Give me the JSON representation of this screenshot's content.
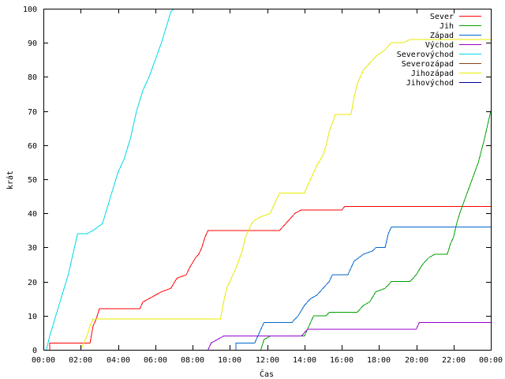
{
  "chart_data": {
    "type": "line",
    "title": "",
    "xlabel": "Čas",
    "ylabel": "krát",
    "xlim": [
      "00:00",
      "24:00"
    ],
    "ylim": [
      0,
      100
    ],
    "grid": false,
    "legend_position": "top-right",
    "x_tick_labels": [
      "00:00",
      "02:00",
      "04:00",
      "06:00",
      "08:00",
      "10:00",
      "12:00",
      "14:00",
      "16:00",
      "18:00",
      "20:00",
      "22:00",
      "00:00"
    ],
    "y_tick_labels": [
      "0",
      "10",
      "20",
      "30",
      "40",
      "50",
      "60",
      "70",
      "80",
      "90",
      "100"
    ],
    "series": [
      {
        "name": "Sever",
        "color": "#ff0000",
        "points": [
          [
            "00:20",
            0
          ],
          [
            "00:20",
            2
          ],
          [
            "02:30",
            2
          ],
          [
            "02:40",
            7
          ],
          [
            "02:50",
            9
          ],
          [
            "03:00",
            12
          ],
          [
            "05:10",
            12
          ],
          [
            "05:20",
            14
          ],
          [
            "05:40",
            15
          ],
          [
            "06:00",
            16
          ],
          [
            "06:20",
            17
          ],
          [
            "06:50",
            18
          ],
          [
            "07:10",
            21
          ],
          [
            "07:40",
            22
          ],
          [
            "07:50",
            24
          ],
          [
            "08:10",
            27
          ],
          [
            "08:20",
            28
          ],
          [
            "08:30",
            30
          ],
          [
            "08:40",
            33
          ],
          [
            "08:50",
            35
          ],
          [
            "12:40",
            35
          ],
          [
            "12:50",
            36
          ],
          [
            "13:00",
            37
          ],
          [
            "13:10",
            38
          ],
          [
            "13:30",
            40
          ],
          [
            "13:50",
            41
          ],
          [
            "16:00",
            41
          ],
          [
            "16:10",
            42
          ],
          [
            "24:00",
            42
          ]
        ]
      },
      {
        "name": "Jih",
        "color": "#00a000",
        "points": [
          [
            "11:40",
            0
          ],
          [
            "11:50",
            3
          ],
          [
            "12:10",
            4
          ],
          [
            "14:00",
            4
          ],
          [
            "14:20",
            8
          ],
          [
            "14:30",
            10
          ],
          [
            "15:10",
            10
          ],
          [
            "15:20",
            11
          ],
          [
            "16:50",
            11
          ],
          [
            "17:10",
            13
          ],
          [
            "17:30",
            14
          ],
          [
            "17:50",
            17
          ],
          [
            "18:20",
            18
          ],
          [
            "18:40",
            20
          ],
          [
            "19:40",
            20
          ],
          [
            "20:00",
            22
          ],
          [
            "20:20",
            25
          ],
          [
            "20:40",
            27
          ],
          [
            "21:00",
            28
          ],
          [
            "21:40",
            28
          ],
          [
            "21:50",
            31
          ],
          [
            "22:00",
            33
          ],
          [
            "22:10",
            37
          ],
          [
            "22:20",
            40
          ],
          [
            "22:40",
            45
          ],
          [
            "23:00",
            50
          ],
          [
            "23:20",
            55
          ],
          [
            "23:40",
            62
          ],
          [
            "24:00",
            70
          ]
        ]
      },
      {
        "name": "Západ",
        "color": "#0066cc",
        "points": [
          [
            "10:20",
            0
          ],
          [
            "10:20",
            2
          ],
          [
            "11:20",
            2
          ],
          [
            "11:40",
            6
          ],
          [
            "11:50",
            8
          ],
          [
            "13:20",
            8
          ],
          [
            "13:40",
            10
          ],
          [
            "14:00",
            13
          ],
          [
            "14:20",
            15
          ],
          [
            "14:40",
            16
          ],
          [
            "15:00",
            18
          ],
          [
            "15:20",
            20
          ],
          [
            "15:30",
            22
          ],
          [
            "16:20",
            22
          ],
          [
            "16:40",
            26
          ],
          [
            "17:10",
            28
          ],
          [
            "17:40",
            29
          ],
          [
            "17:50",
            30
          ],
          [
            "18:20",
            30
          ],
          [
            "18:30",
            34
          ],
          [
            "18:40",
            36
          ],
          [
            "24:00",
            36
          ]
        ]
      },
      {
        "name": "Východ",
        "color": "#9900cc",
        "points": [
          [
            "08:50",
            0
          ],
          [
            "09:00",
            2
          ],
          [
            "09:20",
            3
          ],
          [
            "09:40",
            4
          ],
          [
            "13:50",
            4
          ],
          [
            "14:00",
            5
          ],
          [
            "14:10",
            6
          ],
          [
            "20:00",
            6
          ],
          [
            "20:10",
            8
          ],
          [
            "24:00",
            8
          ]
        ]
      },
      {
        "name": "Severovýchod",
        "color": "#00d8e8",
        "points": [
          [
            "00:10",
            0
          ],
          [
            "00:20",
            4
          ],
          [
            "00:40",
            10
          ],
          [
            "01:00",
            16
          ],
          [
            "01:20",
            22
          ],
          [
            "01:40",
            30
          ],
          [
            "01:50",
            34
          ],
          [
            "02:20",
            34
          ],
          [
            "02:40",
            35
          ],
          [
            "03:10",
            37
          ],
          [
            "03:20",
            40
          ],
          [
            "03:40",
            46
          ],
          [
            "04:00",
            52
          ],
          [
            "04:20",
            56
          ],
          [
            "04:40",
            62
          ],
          [
            "05:00",
            70
          ],
          [
            "05:20",
            76
          ],
          [
            "05:40",
            80
          ],
          [
            "06:00",
            85
          ],
          [
            "06:20",
            90
          ],
          [
            "06:40",
            96
          ],
          [
            "06:50",
            99
          ],
          [
            "07:00",
            100
          ]
        ]
      },
      {
        "name": "Severozápad",
        "color": "#8b4513",
        "points": []
      },
      {
        "name": "Jihozápad",
        "color": "#e8e800",
        "points": [
          [
            "02:00",
            0
          ],
          [
            "02:20",
            4
          ],
          [
            "02:30",
            7
          ],
          [
            "02:40",
            9
          ],
          [
            "09:30",
            9
          ],
          [
            "09:40",
            14
          ],
          [
            "09:50",
            18
          ],
          [
            "10:10",
            22
          ],
          [
            "10:20",
            24
          ],
          [
            "10:40",
            29
          ],
          [
            "10:50",
            33
          ],
          [
            "11:00",
            35
          ],
          [
            "11:10",
            37
          ],
          [
            "11:20",
            38
          ],
          [
            "11:40",
            39
          ],
          [
            "12:10",
            40
          ],
          [
            "12:30",
            44
          ],
          [
            "12:40",
            46
          ],
          [
            "14:00",
            46
          ],
          [
            "14:20",
            50
          ],
          [
            "14:40",
            54
          ],
          [
            "15:00",
            57
          ],
          [
            "15:10",
            60
          ],
          [
            "15:20",
            64
          ],
          [
            "15:40",
            69
          ],
          [
            "16:30",
            69
          ],
          [
            "16:40",
            74
          ],
          [
            "16:50",
            78
          ],
          [
            "17:10",
            82
          ],
          [
            "17:30",
            84
          ],
          [
            "17:50",
            86
          ],
          [
            "18:20",
            88
          ],
          [
            "18:40",
            90
          ],
          [
            "19:20",
            90
          ],
          [
            "19:40",
            91
          ],
          [
            "24:00",
            91
          ]
        ]
      },
      {
        "name": "Jihovýchod",
        "color": "#000099",
        "points": []
      }
    ]
  }
}
